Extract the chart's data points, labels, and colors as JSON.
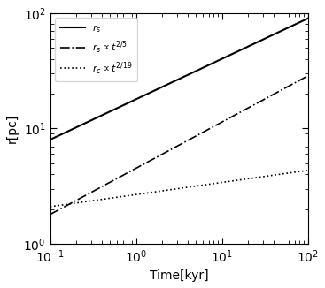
{
  "xlim": [
    0.1,
    100
  ],
  "ylim": [
    1,
    100
  ],
  "xlabel": "Time[kyr]",
  "ylabel": "r[pc]",
  "legend_entries": [
    "$r_s$",
    "$r_s \\propto t^{2/5}$",
    "$r_c \\propto t^{2/19}$"
  ],
  "solid_start_pc": 8.0,
  "solid_exp": 0.35,
  "dashdot_start_pc": 1.8,
  "dashdot_exp": 0.4,
  "dotted_start_pc": 2.1,
  "dotted_exp": 0.105,
  "t_start": 0.1,
  "t_end": 100,
  "n_points": 500,
  "background_color": "#ffffff",
  "line_color": "#000000"
}
